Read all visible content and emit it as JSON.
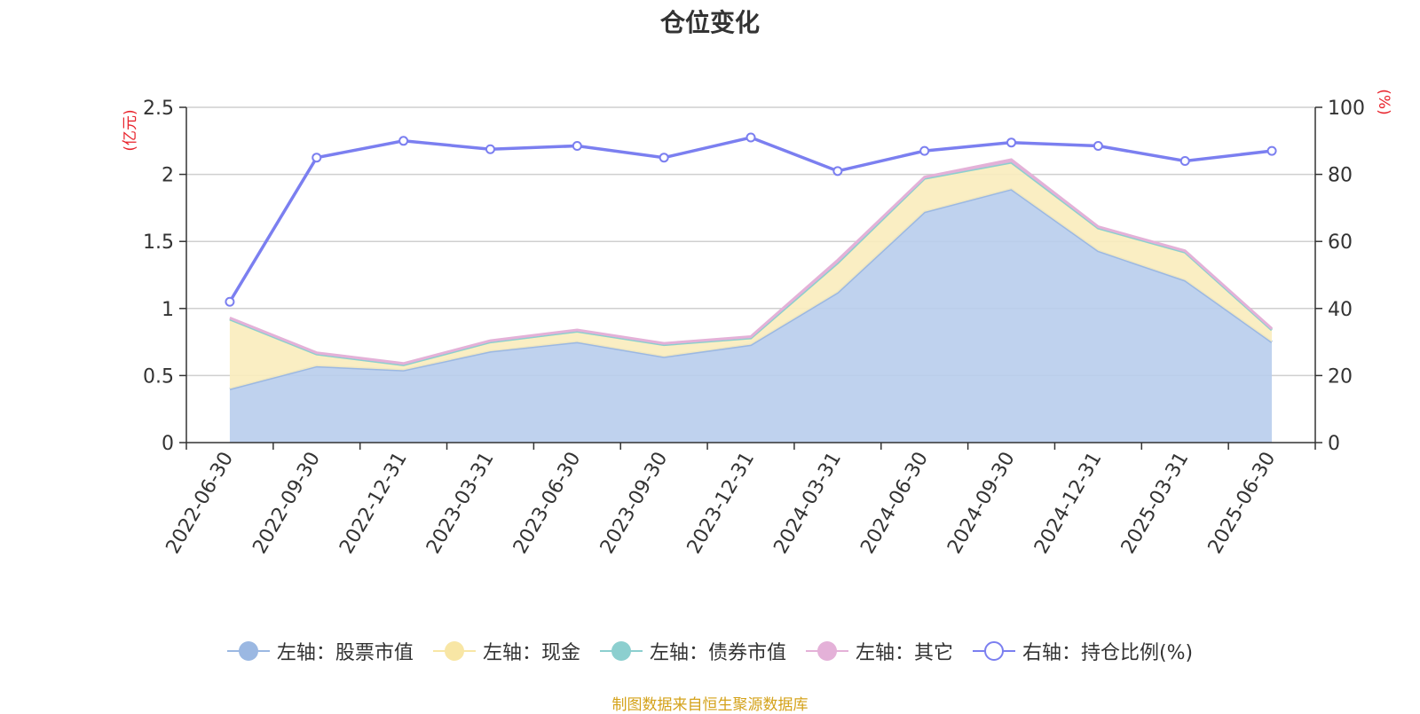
{
  "chart_data": {
    "type": "area",
    "title": "仓位变化",
    "categories": [
      "2022-06-30",
      "2022-09-30",
      "2022-12-31",
      "2023-03-31",
      "2023-06-30",
      "2023-09-30",
      "2023-12-31",
      "2024-03-31",
      "2024-06-30",
      "2024-09-30",
      "2024-12-31",
      "2025-03-31",
      "2025-06-30"
    ],
    "left_axis": {
      "unit_label": "(亿元)",
      "ylim": [
        0,
        2.5
      ],
      "ticks": [
        "0",
        "0.5",
        "1",
        "1.5",
        "2",
        "2.5"
      ],
      "tick_values": [
        0,
        0.5,
        1,
        1.5,
        2,
        2.5
      ]
    },
    "right_axis": {
      "unit_label": "(%)",
      "ylim": [
        0,
        100
      ],
      "ticks": [
        "0",
        "20",
        "40",
        "60",
        "80",
        "100"
      ],
      "tick_values": [
        0,
        20,
        40,
        60,
        80,
        100
      ]
    },
    "grid": true,
    "stacked": true,
    "series": [
      {
        "name": "左轴：股票市值",
        "axis": "left",
        "color": "#9bb8e2",
        "fill": "#b8cdec",
        "values": [
          0.4,
          0.57,
          0.54,
          0.68,
          0.75,
          0.64,
          0.73,
          1.12,
          1.72,
          1.89,
          1.43,
          1.21,
          0.75
        ]
      },
      {
        "name": "左轴：现金",
        "axis": "left",
        "color": "#f8e6a5",
        "fill": "#f9ecbc",
        "values": [
          0.52,
          0.09,
          0.04,
          0.07,
          0.08,
          0.09,
          0.05,
          0.22,
          0.25,
          0.2,
          0.17,
          0.21,
          0.09
        ]
      },
      {
        "name": "左轴：债券市值",
        "axis": "left",
        "color": "#8ccfcf",
        "fill": "#8ccfcf",
        "values": [
          0,
          0,
          0,
          0,
          0,
          0,
          0,
          0,
          0,
          0,
          0,
          0,
          0
        ]
      },
      {
        "name": "左轴：其它",
        "axis": "left",
        "color": "#e4b1d8",
        "fill": "#e4b1d8",
        "values": [
          0.01,
          0.01,
          0.01,
          0.01,
          0.01,
          0.01,
          0.01,
          0.02,
          0.01,
          0.02,
          0.01,
          0.01,
          0.01
        ]
      },
      {
        "name": "右轴：持仓比例(%)",
        "axis": "right",
        "color": "#7b7ff0",
        "values": [
          42,
          85,
          90,
          87.5,
          88.5,
          85,
          91,
          81,
          87,
          89.5,
          88.5,
          84,
          87
        ]
      }
    ],
    "legend_position": "bottom-center"
  },
  "source": "制图数据来自恒生聚源数据库"
}
